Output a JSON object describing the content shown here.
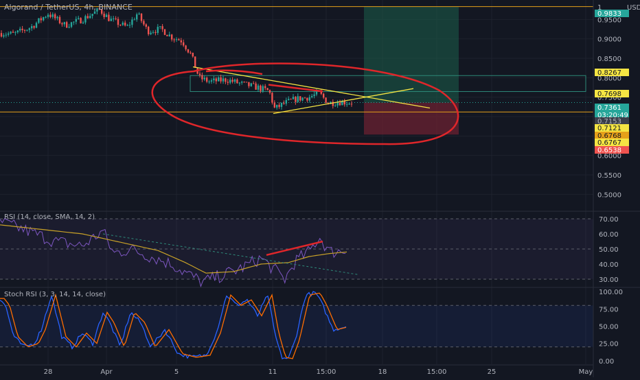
{
  "header": {
    "symbol": "Algorand / TetherUS, 4h, BINANCE",
    "currency": "USDT"
  },
  "colors": {
    "background": "#131722",
    "grid": "#1e222d",
    "up": "#26a69a",
    "down": "#ef5350",
    "axis_text": "#b2b5be",
    "rsi_line": "#7e57c2",
    "rsi_ma": "#c9a227",
    "stoch_k": "#2962ff",
    "stoch_d": "#ff6d00",
    "annotation_red": "#e0262a",
    "annotation_yellow": "#f5e543",
    "level_line": "#e6a11a"
  },
  "chart_data": [
    {
      "type": "candlestick",
      "name": "price",
      "x_labels": [
        "28",
        "Apr",
        "5",
        "11",
        "15:00",
        "18",
        "15:00",
        "25",
        "May"
      ],
      "y_ticks": [
        "0.9500",
        "0.9000",
        "0.8500",
        "0.8000",
        "0.7500",
        "0.7000",
        "0.6500",
        "0.6000",
        "0.5500",
        "0.5000"
      ],
      "y_range": [
        0.46,
        1.0
      ],
      "price_labels": [
        {
          "text": "1",
          "bg": "#131722",
          "fg": "#b2b5be"
        },
        {
          "text": "0.9833",
          "bg": "#26a69a",
          "fg": "#ffffff"
        },
        {
          "text": "0.8267",
          "bg": "#f5e543",
          "fg": "#131722"
        },
        {
          "text": "0.7698",
          "bg": "#f5e543",
          "fg": "#131722"
        },
        {
          "text": "0.7361",
          "bg": "#26a69a",
          "fg": "#ffffff"
        },
        {
          "text": "03:20:49",
          "bg": "#26a69a",
          "fg": "#ffffff"
        },
        {
          "text": "0.7153",
          "bg": "#3a3e4a",
          "fg": "#b2b5be"
        },
        {
          "text": "0.7121",
          "bg": "#f5e543",
          "fg": "#131722"
        },
        {
          "text": "0.6768",
          "bg": "#e6a11a",
          "fg": "#131722"
        },
        {
          "text": "0.6767",
          "bg": "#f5e543",
          "fg": "#131722"
        },
        {
          "text": "0.6538",
          "bg": "#ef5350",
          "fg": "#ffffff"
        }
      ],
      "levels": [
        0.983,
        0.712
      ],
      "trade": {
        "entry": 0.7361,
        "target": 0.9833,
        "stop": 0.6538
      },
      "last_price": 0.7361
    },
    {
      "type": "line",
      "name": "rsi",
      "title": "RSI (14, close, SMA, 14, 2)",
      "y_ticks": [
        "70.00",
        "60.00",
        "50.00",
        "40.00",
        "30.00"
      ],
      "y_range": [
        25,
        75
      ],
      "bands": [
        30,
        50,
        70
      ]
    },
    {
      "type": "line",
      "name": "stoch",
      "title": "Stoch RSI (3, 3, 14, 14, close)",
      "y_ticks": [
        "100.00",
        "75.00",
        "50.00",
        "25.00",
        "0.00"
      ],
      "y_range": [
        -5,
        105
      ],
      "bands": [
        20,
        80
      ]
    }
  ]
}
